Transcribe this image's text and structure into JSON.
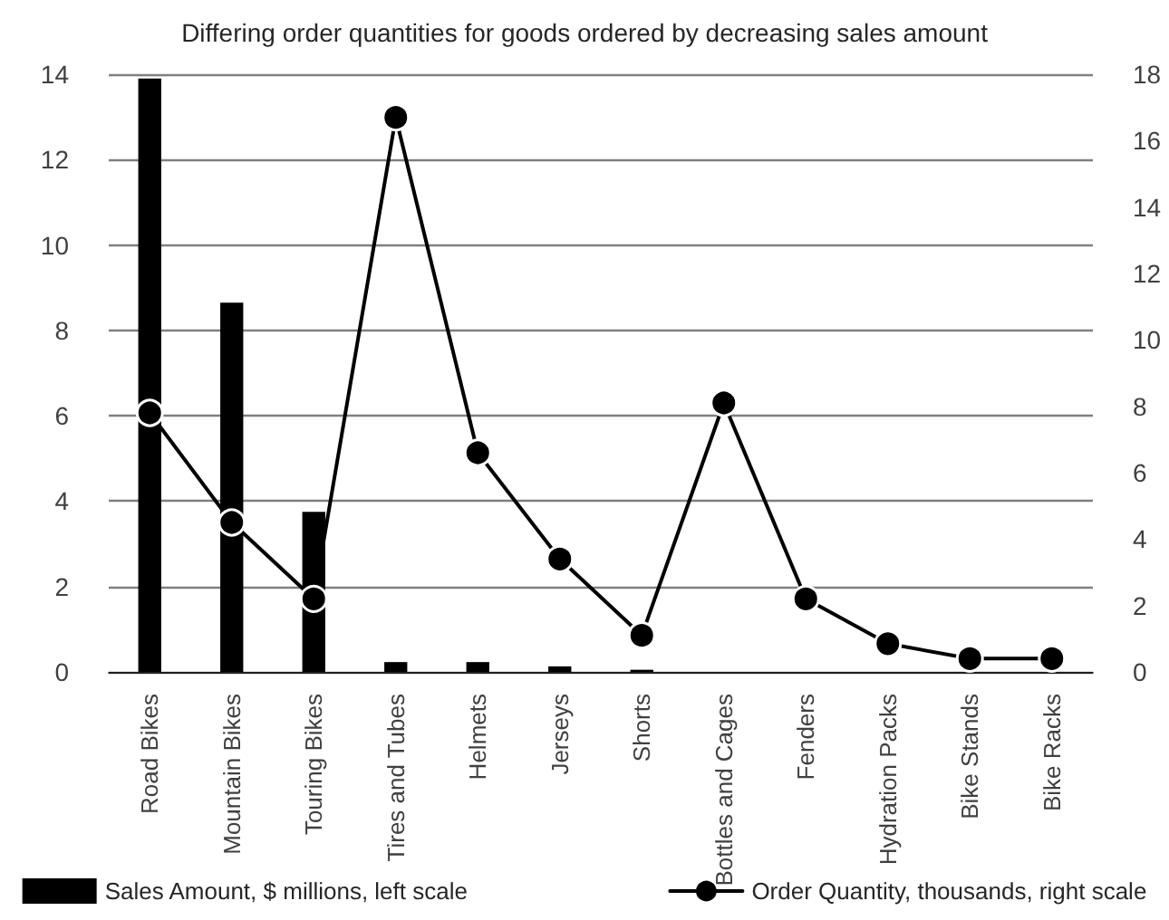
{
  "chart_data": {
    "type": "bar",
    "title": "Differing order quantities for goods ordered by decreasing sales amount",
    "categories": [
      "Road Bikes",
      "Mountain Bikes",
      "Touring Bikes",
      "Tires and Tubes",
      "Helmets",
      "Jerseys",
      "Shorts",
      "Bottles and Cages",
      "Fenders",
      "Hydration Packs",
      "Bike Stands",
      "Bike Racks"
    ],
    "series": [
      {
        "name": "Sales Amount, $ millions, left scale",
        "color": "#000000",
        "values": [
          13.9,
          8.65,
          3.75,
          0.23,
          0.23,
          0.13,
          0.05,
          0,
          0,
          0,
          0,
          0
        ]
      },
      {
        "name": "Order Quantity, thousands, right scale",
        "type": "line",
        "axis": "y2",
        "color": "#000000",
        "values": [
          7.8,
          4.5,
          2.2,
          16.7,
          6.6,
          3.4,
          1.1,
          8.1,
          2.2,
          0.85,
          0.4,
          0.4
        ]
      }
    ],
    "ylim": [
      0,
      14
    ],
    "yticks": [
      0,
      2,
      4,
      6,
      8,
      10,
      12,
      14
    ],
    "y2lim": [
      0,
      18
    ],
    "y2ticks": [
      0,
      2,
      4,
      6,
      8,
      10,
      12,
      14,
      16,
      18
    ],
    "grid": "y",
    "legend": "bottom",
    "marker": "circle",
    "line_style": "solid"
  }
}
